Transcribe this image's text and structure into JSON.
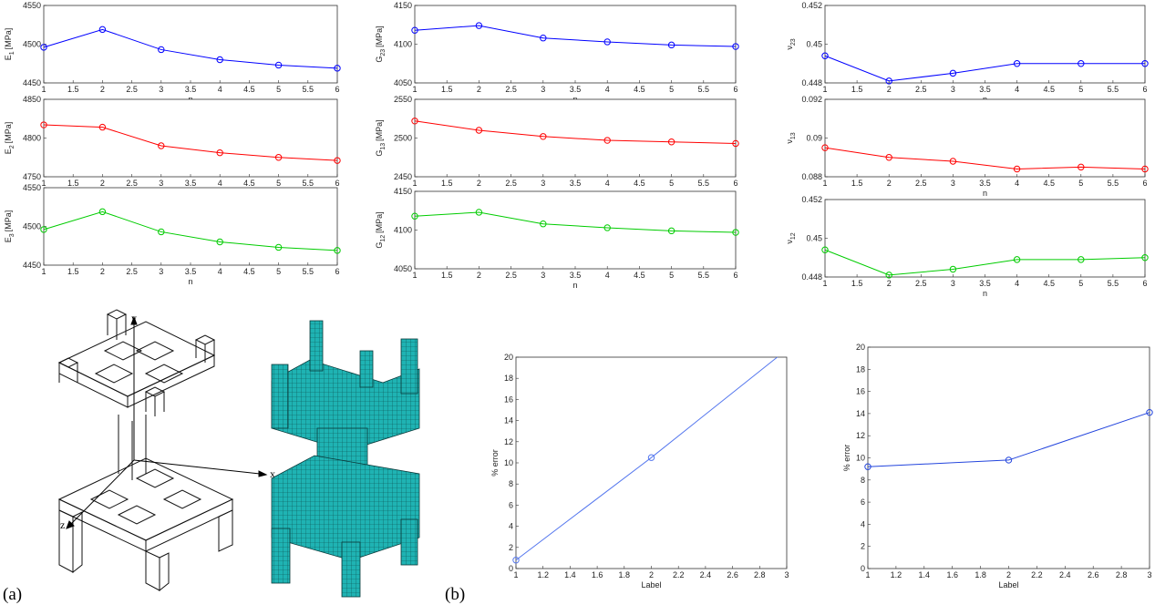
{
  "figure": {
    "labels": {
      "a": "(a)",
      "b": "(b)"
    },
    "axis_icons": {
      "x": "x",
      "y": "y",
      "z": "z"
    }
  },
  "chart_data": [
    {
      "id": "E1",
      "type": "line",
      "color": "#0000ff",
      "x": [
        1,
        2,
        3,
        4,
        5,
        6
      ],
      "y": [
        4496,
        4519,
        4493,
        4480,
        4473,
        4469
      ],
      "xlim": [
        1,
        6
      ],
      "ylim": [
        4450,
        4550
      ],
      "xticks": [
        "1",
        "1.5",
        "2",
        "2.5",
        "3",
        "3.5",
        "4",
        "4.5",
        "5",
        "5.5",
        "6"
      ],
      "yticks": [
        "4450",
        "4500",
        "4550"
      ],
      "xlabel": "n",
      "ylabel_main": "E",
      "ylabel_sub": "1",
      "ylabel_unit": "[MPa]",
      "marker": "circle"
    },
    {
      "id": "E2",
      "type": "line",
      "color": "#ff0000",
      "x": [
        1,
        2,
        3,
        4,
        5,
        6
      ],
      "y": [
        4817,
        4814,
        4790,
        4781,
        4775,
        4771
      ],
      "xlim": [
        1,
        6
      ],
      "ylim": [
        4750,
        4850
      ],
      "xticks": [
        "1",
        "1.5",
        "2",
        "2.5",
        "3",
        "3.5",
        "4",
        "4.5",
        "5",
        "5.5",
        "6"
      ],
      "yticks": [
        "4750",
        "4800",
        "4850"
      ],
      "xlabel": "n",
      "ylabel_main": "E",
      "ylabel_sub": "2",
      "ylabel_unit": "[MPa]",
      "marker": "circle"
    },
    {
      "id": "E3",
      "type": "line",
      "color": "#00cc00",
      "x": [
        1,
        2,
        3,
        4,
        5,
        6
      ],
      "y": [
        4496,
        4519,
        4493,
        4480,
        4473,
        4469
      ],
      "xlim": [
        1,
        6
      ],
      "ylim": [
        4450,
        4550
      ],
      "xticks": [
        "1",
        "1.5",
        "2",
        "2.5",
        "3",
        "3.5",
        "4",
        "4.5",
        "5",
        "5.5",
        "6"
      ],
      "yticks": [
        "4450",
        "4500",
        "4550"
      ],
      "xlabel": "n",
      "ylabel_main": "E",
      "ylabel_sub": "3",
      "ylabel_unit": "[MPa]",
      "marker": "circle"
    },
    {
      "id": "G23",
      "type": "line",
      "color": "#0000ff",
      "x": [
        1,
        2,
        3,
        4,
        5,
        6
      ],
      "y": [
        4118,
        4124,
        4108,
        4103,
        4099,
        4097
      ],
      "xlim": [
        1,
        6
      ],
      "ylim": [
        4050,
        4150
      ],
      "xticks": [
        "1",
        "1.5",
        "2",
        "2.5",
        "3",
        "3.5",
        "4",
        "4.5",
        "5",
        "5.5",
        "6"
      ],
      "yticks": [
        "4050",
        "4100",
        "4150"
      ],
      "xlabel": "n",
      "ylabel_main": "G",
      "ylabel_sub": "23",
      "ylabel_unit": "[MPa]",
      "marker": "circle"
    },
    {
      "id": "G13",
      "type": "line",
      "color": "#ff0000",
      "x": [
        1,
        2,
        3,
        4,
        5,
        6
      ],
      "y": [
        2522,
        2510,
        2502,
        2497,
        2495,
        2493
      ],
      "xlim": [
        1,
        6
      ],
      "ylim": [
        2450,
        2550
      ],
      "xticks": [
        "1",
        "1.5",
        "2",
        "2.5",
        "3",
        "3.5",
        "4",
        "4.5",
        "5",
        "5.5",
        "6"
      ],
      "yticks": [
        "2450",
        "2500",
        "2550"
      ],
      "xlabel": "n",
      "ylabel_main": "G",
      "ylabel_sub": "13",
      "ylabel_unit": "[MPa]",
      "marker": "circle"
    },
    {
      "id": "G12",
      "type": "line",
      "color": "#00cc00",
      "x": [
        1,
        2,
        3,
        4,
        5,
        6
      ],
      "y": [
        4118,
        4123,
        4108,
        4103,
        4099,
        4097
      ],
      "xlim": [
        1,
        6
      ],
      "ylim": [
        4050,
        4150
      ],
      "xticks": [
        "1",
        "1.5",
        "2",
        "2.5",
        "3",
        "3.5",
        "4",
        "4.5",
        "5",
        "5.5",
        "6"
      ],
      "yticks": [
        "4050",
        "4100",
        "4150"
      ],
      "xlabel": "n",
      "ylabel_main": "G",
      "ylabel_sub": "12",
      "ylabel_unit": "[MPa]",
      "marker": "circle"
    },
    {
      "id": "nu23",
      "type": "line",
      "color": "#0000ff",
      "x": [
        1,
        2,
        3,
        4,
        5,
        6
      ],
      "y": [
        0.4494,
        0.4481,
        0.4485,
        0.449,
        0.449,
        0.449
      ],
      "xlim": [
        1,
        6
      ],
      "ylim": [
        0.448,
        0.452
      ],
      "xticks": [
        "1",
        "1.5",
        "2",
        "2.5",
        "3",
        "3.5",
        "4",
        "4.5",
        "5",
        "5.5",
        "6"
      ],
      "yticks": [
        "0.448",
        "0.45",
        "0.452"
      ],
      "xlabel": "n",
      "ylabel_main": "ν",
      "ylabel_sub": "23",
      "ylabel_unit": "",
      "marker": "circle"
    },
    {
      "id": "nu13",
      "type": "line",
      "color": "#ff0000",
      "x": [
        1,
        2,
        3,
        4,
        5,
        6
      ],
      "y": [
        0.0895,
        0.089,
        0.0888,
        0.0884,
        0.0885,
        0.0884
      ],
      "xlim": [
        1,
        6
      ],
      "ylim": [
        0.088,
        0.092
      ],
      "xticks": [
        "1",
        "1.5",
        "2",
        "2.5",
        "3",
        "3.5",
        "4",
        "4.5",
        "5",
        "5.5",
        "6"
      ],
      "yticks": [
        "0.088",
        "0.09",
        "0.092"
      ],
      "xlabel": "n",
      "ylabel_main": "ν",
      "ylabel_sub": "13",
      "ylabel_unit": "",
      "marker": "circle"
    },
    {
      "id": "nu12",
      "type": "line",
      "color": "#00cc00",
      "x": [
        1,
        2,
        3,
        4,
        5,
        6
      ],
      "y": [
        0.4494,
        0.4481,
        0.4484,
        0.4489,
        0.4489,
        0.449
      ],
      "xlim": [
        1,
        6
      ],
      "ylim": [
        0.448,
        0.452
      ],
      "xticks": [
        "1",
        "1.5",
        "2",
        "2.5",
        "3",
        "3.5",
        "4",
        "4.5",
        "5",
        "5.5",
        "6"
      ],
      "yticks": [
        "0.448",
        "0.45",
        "0.452"
      ],
      "xlabel": "n",
      "ylabel_main": "ν",
      "ylabel_sub": "12",
      "ylabel_unit": "",
      "marker": "circle"
    },
    {
      "id": "err1",
      "type": "line",
      "color": "#5577ee",
      "x": [
        1,
        2,
        2.93
      ],
      "y": [
        0.8,
        10.5,
        20.0
      ],
      "marker_idx": [
        0,
        1
      ],
      "xlim": [
        1,
        3
      ],
      "ylim": [
        0,
        20
      ],
      "xticks": [
        "1",
        "1.2",
        "1.4",
        "1.6",
        "1.8",
        "2",
        "2.2",
        "2.4",
        "2.6",
        "2.8",
        "3"
      ],
      "yticks": [
        "0",
        "2",
        "4",
        "6",
        "8",
        "10",
        "12",
        "14",
        "16",
        "18",
        "20"
      ],
      "xlabel": "Label",
      "ylabel_main": "% error",
      "ylabel_sub": "",
      "ylabel_unit": "",
      "marker": "circle"
    },
    {
      "id": "err2",
      "type": "line",
      "color": "#2244dd",
      "x": [
        1,
        2,
        3
      ],
      "y": [
        9.2,
        9.8,
        14.1
      ],
      "marker_idx": [
        0,
        1,
        2
      ],
      "xlim": [
        1,
        3
      ],
      "ylim": [
        0,
        20
      ],
      "xticks": [
        "1",
        "1.2",
        "1.4",
        "1.6",
        "1.8",
        "2",
        "2.2",
        "2.4",
        "2.6",
        "2.8",
        "3"
      ],
      "yticks": [
        "0",
        "2",
        "4",
        "6",
        "8",
        "10",
        "12",
        "14",
        "16",
        "18",
        "20"
      ],
      "xlabel": "Label",
      "ylabel_main": "% error",
      "ylabel_sub": "",
      "ylabel_unit": "",
      "marker": "circle"
    }
  ]
}
